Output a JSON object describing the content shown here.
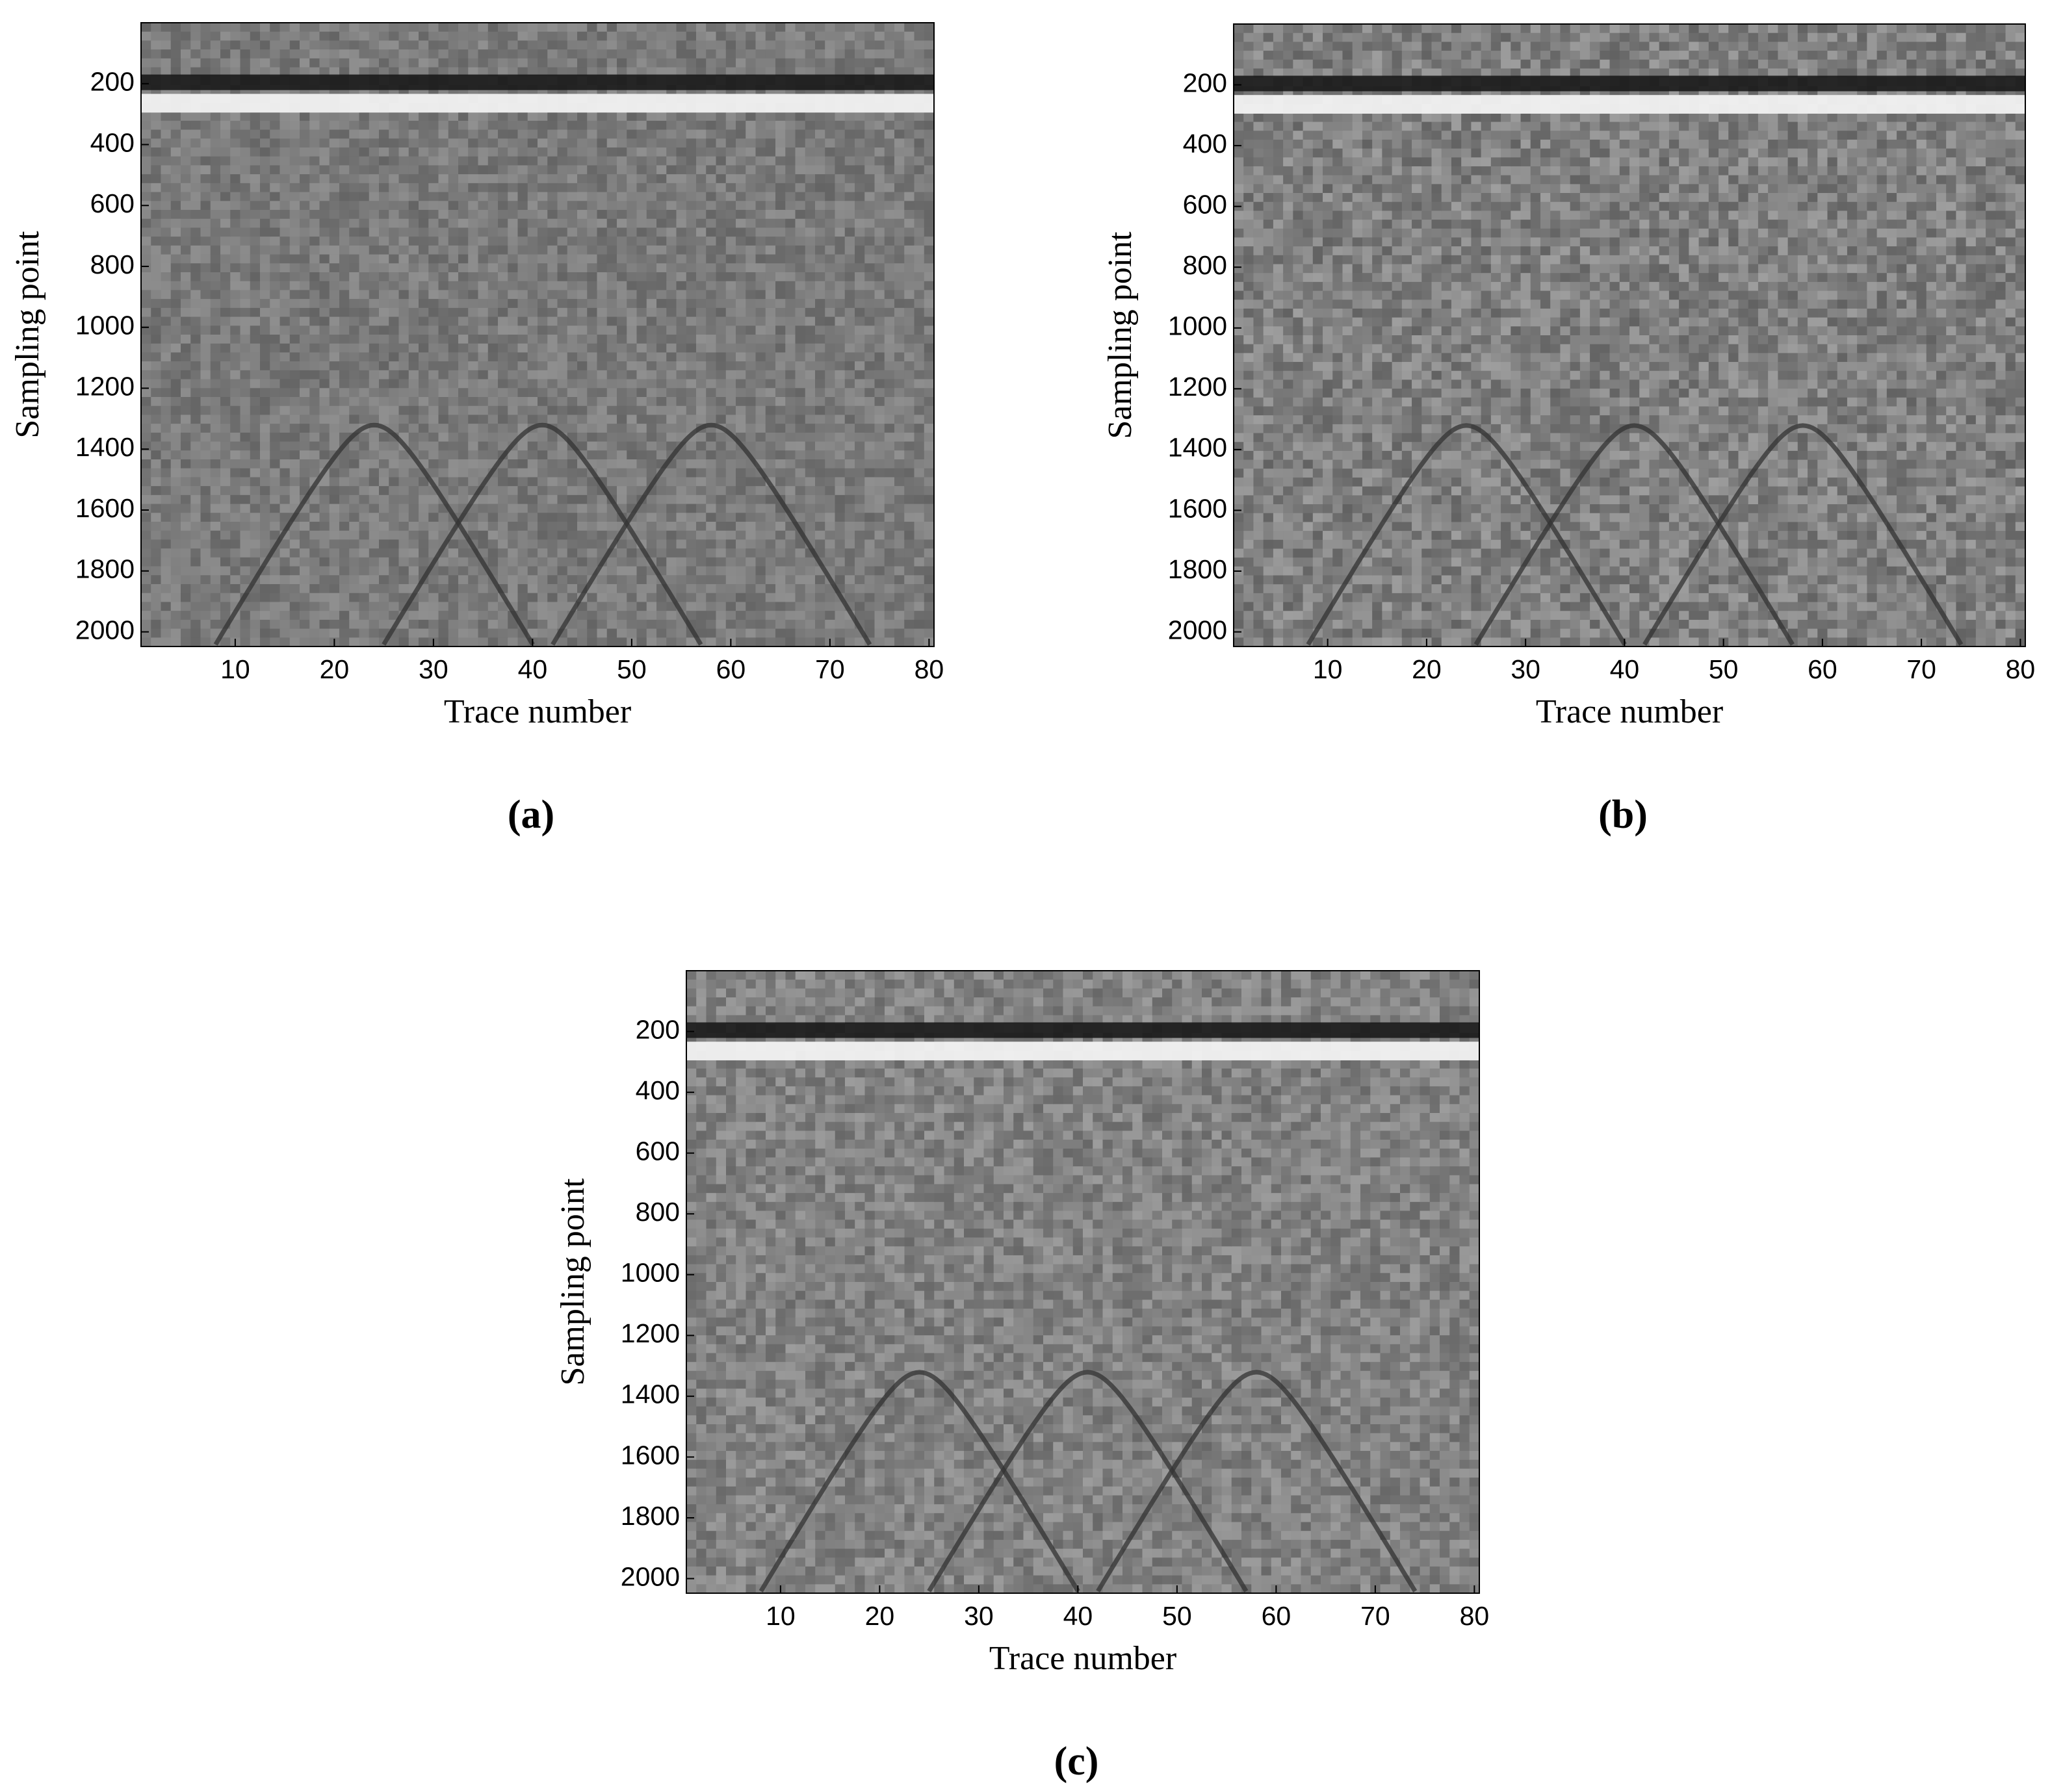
{
  "chart_data": [
    {
      "type": "heatmap",
      "label": "(a)",
      "xlabel": "Trace number",
      "ylabel": "Sampling point",
      "colormap": "gray",
      "y_reversed": true,
      "xlim": [
        0.5,
        80.5
      ],
      "ylim": [
        0,
        2048
      ],
      "xticks": [
        10,
        20,
        30,
        40,
        50,
        60,
        70,
        80
      ],
      "yticks": [
        200,
        400,
        600,
        800,
        1000,
        1200,
        1400,
        1600,
        1800,
        2000
      ]
    },
    {
      "type": "heatmap",
      "label": "(b)",
      "xlabel": "Trace number",
      "ylabel": "Sampling point",
      "colormap": "gray",
      "y_reversed": true,
      "xlim": [
        0.5,
        80.5
      ],
      "ylim": [
        0,
        2048
      ],
      "xticks": [
        10,
        20,
        30,
        40,
        50,
        60,
        70,
        80
      ],
      "yticks": [
        200,
        400,
        600,
        800,
        1000,
        1200,
        1400,
        1600,
        1800,
        2000
      ]
    },
    {
      "type": "heatmap",
      "label": "(c)",
      "xlabel": "Trace number",
      "ylabel": "Sampling point",
      "colormap": "gray",
      "y_reversed": true,
      "xlim": [
        0.5,
        80.5
      ],
      "ylim": [
        0,
        2048
      ],
      "xticks": [
        10,
        20,
        30,
        40,
        50,
        60,
        70,
        80
      ],
      "yticks": [
        200,
        400,
        600,
        800,
        1000,
        1200,
        1400,
        1600,
        1800,
        2000
      ]
    }
  ]
}
